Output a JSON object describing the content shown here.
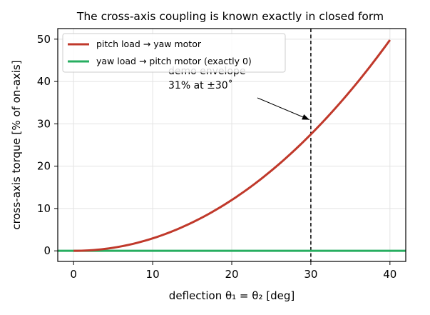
{
  "chart_data": {
    "type": "line",
    "title": "The cross-axis coupling is known exactly in closed form",
    "xlabel": "deflection θ₁ = θ₂  [deg]",
    "ylabel": "cross-axis torque  [% of on-axis]",
    "xlim": [
      -2,
      42
    ],
    "ylim": [
      -2.5,
      52.5
    ],
    "xticks": [
      0,
      10,
      20,
      30,
      40
    ],
    "yticks": [
      0,
      10,
      20,
      30,
      40,
      50
    ],
    "grid": true,
    "legend_position": "top-left",
    "series": [
      {
        "name": "pitch load → yaw motor",
        "color": "#c0392b",
        "x": [
          0,
          5,
          10,
          15,
          20,
          25,
          30,
          35,
          40
        ],
        "y": [
          0,
          1.2,
          4.6,
          9.8,
          16.2,
          23.2,
          30.8,
          39.9,
          49.8
        ]
      },
      {
        "name": "yaw load → pitch motor (exactly 0)",
        "color": "#27ae60",
        "x": [
          -2,
          42
        ],
        "y": [
          0,
          0
        ]
      }
    ],
    "reference_line": {
      "x": 30,
      "style": "dashed",
      "color": "#000000"
    },
    "annotation": {
      "line1": "demo envelope",
      "line2": "31% at ±30˚",
      "arrow_target": [
        30,
        30.8
      ]
    }
  }
}
